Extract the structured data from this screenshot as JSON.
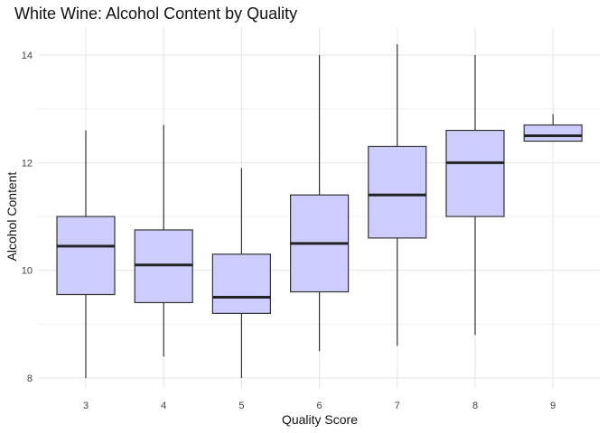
{
  "chart_data": {
    "type": "boxplot",
    "title": "White Wine: Alcohol Content by Quality",
    "xlabel": "Quality Score",
    "ylabel": "Alcohol Content",
    "categories": [
      "3",
      "4",
      "5",
      "6",
      "7",
      "8",
      "9"
    ],
    "boxes": [
      {
        "category": "3",
        "min": 8.0,
        "q1": 9.55,
        "median": 10.45,
        "q3": 11.0,
        "max": 12.6
      },
      {
        "category": "4",
        "min": 8.4,
        "q1": 9.4,
        "median": 10.1,
        "q3": 10.75,
        "max": 12.7
      },
      {
        "category": "5",
        "min": 8.0,
        "q1": 9.2,
        "median": 9.5,
        "q3": 10.3,
        "max": 11.9
      },
      {
        "category": "6",
        "min": 8.5,
        "q1": 9.6,
        "median": 10.5,
        "q3": 11.4,
        "max": 14.0
      },
      {
        "category": "7",
        "min": 8.6,
        "q1": 10.6,
        "median": 11.4,
        "q3": 12.3,
        "max": 14.2
      },
      {
        "category": "8",
        "min": 8.8,
        "q1": 11.0,
        "median": 12.0,
        "q3": 12.6,
        "max": 14.0
      },
      {
        "category": "9",
        "min": 12.4,
        "q1": 12.4,
        "median": 12.5,
        "q3": 12.7,
        "max": 12.9
      }
    ],
    "ylim": [
      7.8,
      14.4
    ],
    "yticks": [
      8,
      10,
      12,
      14
    ],
    "grid": true,
    "box_fill": "#ccccff",
    "box_stroke": "#333333"
  }
}
